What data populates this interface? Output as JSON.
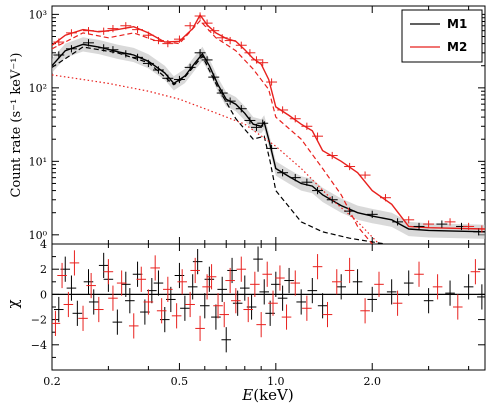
{
  "chart_data": [
    {
      "type": "line",
      "panel": "spectrum",
      "xlabel_italic": "E",
      "xlabel_unit": "(keV)",
      "ylabel": "Count rate (s⁻¹ keV⁻¹)",
      "xscale": "log",
      "yscale": "log",
      "xlim": [
        0.2,
        4.5
      ],
      "ylim": [
        0.75,
        1300
      ],
      "y_ticks": [
        1,
        10,
        100,
        1000
      ],
      "y_tick_labels": [
        "10⁰",
        "10¹",
        "10²",
        "10³"
      ],
      "legend_position": "top-right",
      "colors": {
        "M1": "#000000",
        "M2": "#e8211e"
      },
      "series": [
        {
          "name": "M1",
          "role": "model",
          "x": [
            0.2,
            0.22,
            0.25,
            0.28,
            0.32,
            0.36,
            0.4,
            0.45,
            0.48,
            0.52,
            0.56,
            0.59,
            0.62,
            0.66,
            0.7,
            0.75,
            0.8,
            0.85,
            0.9,
            0.92,
            0.95,
            1.0,
            1.1,
            1.2,
            1.3,
            1.4,
            1.6,
            1.8,
            2.0,
            2.3,
            2.6,
            3.0,
            4.5
          ],
          "values": [
            200,
            320,
            390,
            360,
            310,
            280,
            230,
            160,
            115,
            145,
            220,
            290,
            200,
            110,
            70,
            60,
            45,
            32,
            30,
            34,
            20,
            8,
            6.2,
            5.0,
            4.6,
            3.5,
            2.5,
            2.0,
            1.8,
            1.6,
            1.2,
            1.15,
            1.1
          ]
        },
        {
          "name": "M2",
          "role": "model",
          "x": [
            0.2,
            0.22,
            0.25,
            0.28,
            0.32,
            0.36,
            0.4,
            0.45,
            0.5,
            0.55,
            0.58,
            0.61,
            0.65,
            0.7,
            0.75,
            0.8,
            0.85,
            0.9,
            0.95,
            1.0,
            1.1,
            1.2,
            1.3,
            1.4,
            1.6,
            1.8,
            2.0,
            2.3,
            2.6,
            3.0,
            4.5
          ],
          "values": [
            380,
            520,
            620,
            580,
            620,
            680,
            560,
            420,
            430,
            640,
            980,
            720,
            560,
            470,
            430,
            330,
            250,
            210,
            130,
            55,
            42,
            32,
            26,
            14,
            10,
            7.0,
            4.0,
            2.6,
            1.3,
            1.25,
            1.2
          ]
        },
        {
          "role": "component",
          "linestyle": "dashed",
          "color": "#000000",
          "x": [
            0.2,
            0.25,
            0.32,
            0.4,
            0.48,
            0.52,
            0.59,
            0.66,
            0.75,
            0.85,
            0.92,
            0.96,
            1.0,
            1.2,
            1.4,
            1.7,
            2.0,
            2.2
          ],
          "values": [
            190,
            360,
            300,
            220,
            110,
            140,
            270,
            100,
            38,
            20,
            22,
            10,
            4,
            1.5,
            1.1,
            0.9,
            0.8,
            0.75
          ]
        },
        {
          "role": "component",
          "linestyle": "dashed",
          "color": "#e8211e",
          "x": [
            0.2,
            0.25,
            0.3,
            0.36,
            0.42,
            0.5,
            0.58,
            0.65,
            0.75,
            0.85,
            0.95,
            1.0,
            1.2,
            1.4,
            1.6,
            1.8,
            2.0
          ],
          "values": [
            340,
            560,
            480,
            560,
            440,
            400,
            820,
            480,
            320,
            180,
            95,
            40,
            20,
            8,
            3.5,
            1.3,
            0.75
          ]
        },
        {
          "role": "component",
          "linestyle": "dotted",
          "color": "#e8211e",
          "x": [
            0.2,
            0.25,
            0.3,
            0.4,
            0.5,
            0.6,
            0.8,
            1.0,
            1.2,
            1.5,
            1.8,
            2.1
          ],
          "values": [
            150,
            130,
            115,
            90,
            70,
            52,
            32,
            16,
            8,
            3,
            1.5,
            0.75
          ]
        }
      ],
      "data_points": [
        {
          "name": "M1",
          "x": [
            0.21,
            0.23,
            0.26,
            0.29,
            0.31,
            0.34,
            0.37,
            0.4,
            0.43,
            0.46,
            0.5,
            0.54,
            0.58,
            0.61,
            0.64,
            0.68,
            0.72,
            0.78,
            0.83,
            0.87,
            0.91,
            0.97,
            1.05,
            1.15,
            1.25,
            1.35,
            1.5,
            1.7,
            2.0,
            2.4,
            2.8,
            3.3,
            3.8,
            4.3
          ],
          "values": [
            280,
            340,
            410,
            350,
            330,
            290,
            260,
            215,
            175,
            135,
            130,
            190,
            300,
            240,
            140,
            85,
            66,
            52,
            36,
            29,
            33,
            15,
            7.0,
            6.0,
            5.2,
            4.0,
            3.0,
            2.1,
            1.9,
            1.5,
            1.3,
            1.4,
            1.3,
            1.1
          ]
        },
        {
          "name": "M2",
          "x": [
            0.21,
            0.23,
            0.26,
            0.29,
            0.31,
            0.34,
            0.37,
            0.4,
            0.43,
            0.46,
            0.5,
            0.54,
            0.58,
            0.61,
            0.64,
            0.68,
            0.72,
            0.78,
            0.83,
            0.87,
            0.91,
            0.97,
            1.05,
            1.15,
            1.25,
            1.35,
            1.5,
            1.7,
            1.9,
            2.2,
            2.6,
            3.0,
            3.5,
            4.0,
            4.4
          ],
          "values": [
            420,
            560,
            600,
            590,
            640,
            700,
            620,
            520,
            440,
            400,
            460,
            700,
            950,
            760,
            600,
            480,
            440,
            380,
            300,
            240,
            220,
            120,
            50,
            38,
            30,
            22,
            12,
            8.5,
            6.5,
            3.2,
            1.6,
            1.4,
            1.5,
            1.3,
            1.2
          ]
        }
      ]
    },
    {
      "type": "scatter",
      "panel": "residuals",
      "ylabel": "χ",
      "xlabel_italic": "E",
      "xlabel_unit": "(keV)",
      "xscale": "log",
      "xlim": [
        0.2,
        4.5
      ],
      "ylim": [
        -6,
        4
      ],
      "y_ticks": [
        -4,
        -2,
        0,
        2,
        4
      ],
      "y_tick_labels": [
        "−4",
        "−2",
        "0",
        "2",
        "4"
      ],
      "x_ticks": [
        0.2,
        0.5,
        1.0,
        2.0
      ],
      "x_tick_labels": [
        "0.2",
        "0.5",
        "1.0",
        "2.0"
      ],
      "series": [
        {
          "name": "M1",
          "x": [
            0.21,
            0.22,
            0.23,
            0.24,
            0.26,
            0.27,
            0.29,
            0.3,
            0.32,
            0.34,
            0.35,
            0.37,
            0.39,
            0.41,
            0.43,
            0.45,
            0.47,
            0.5,
            0.52,
            0.55,
            0.57,
            0.6,
            0.62,
            0.65,
            0.68,
            0.7,
            0.73,
            0.76,
            0.8,
            0.84,
            0.88,
            0.92,
            0.96,
            1.0,
            1.05,
            1.1,
            1.2,
            1.3,
            1.4,
            1.6,
            1.8,
            2.0,
            2.3,
            2.6,
            3.0,
            3.5,
            4.0,
            4.4
          ],
          "values": [
            -1.2,
            2.0,
            0.5,
            -1.5,
            1.0,
            -0.6,
            2.3,
            1.2,
            -2.2,
            0.8,
            -0.5,
            1.6,
            -1.4,
            0.3,
            0.9,
            -2.0,
            -0.4,
            1.5,
            -1.1,
            0.6,
            2.6,
            -0.9,
            1.2,
            -1.8,
            0.4,
            -3.6,
            1.9,
            -0.7,
            0.5,
            -1.0,
            2.8,
            0.2,
            -1.5,
            0.8,
            -0.3,
            1.1,
            -0.6,
            0.3,
            -0.9,
            0.6,
            1.0,
            -0.4,
            0.2,
            0.9,
            -0.5,
            0.1,
            0.6,
            -0.2
          ]
        },
        {
          "name": "M2",
          "x": [
            0.205,
            0.215,
            0.225,
            0.235,
            0.25,
            0.265,
            0.28,
            0.3,
            0.31,
            0.33,
            0.36,
            0.38,
            0.4,
            0.42,
            0.44,
            0.46,
            0.49,
            0.51,
            0.54,
            0.56,
            0.58,
            0.61,
            0.63,
            0.66,
            0.69,
            0.72,
            0.75,
            0.78,
            0.82,
            0.86,
            0.9,
            0.94,
            0.98,
            1.03,
            1.08,
            1.15,
            1.25,
            1.35,
            1.45,
            1.55,
            1.7,
            1.9,
            2.1,
            2.4,
            2.8,
            3.2,
            3.7,
            4.2
          ],
          "values": [
            -2.3,
            1.5,
            -0.8,
            2.5,
            -1.9,
            0.7,
            -1.2,
            1.8,
            -0.3,
            0.9,
            -2.5,
            1.2,
            -0.6,
            2.1,
            -1.3,
            0.4,
            -1.7,
            1.0,
            -0.8,
            1.9,
            -2.7,
            0.6,
            1.4,
            -0.9,
            -1.6,
            1.1,
            -0.5,
            2.0,
            -1.2,
            0.8,
            -2.4,
            1.6,
            -0.7,
            1.3,
            -1.8,
            0.9,
            -1.1,
            2.2,
            -1.6,
            1.0,
            1.9,
            -1.3,
            0.8,
            -0.7,
            1.6,
            0.6,
            -1.0,
            1.8
          ]
        }
      ]
    }
  ]
}
